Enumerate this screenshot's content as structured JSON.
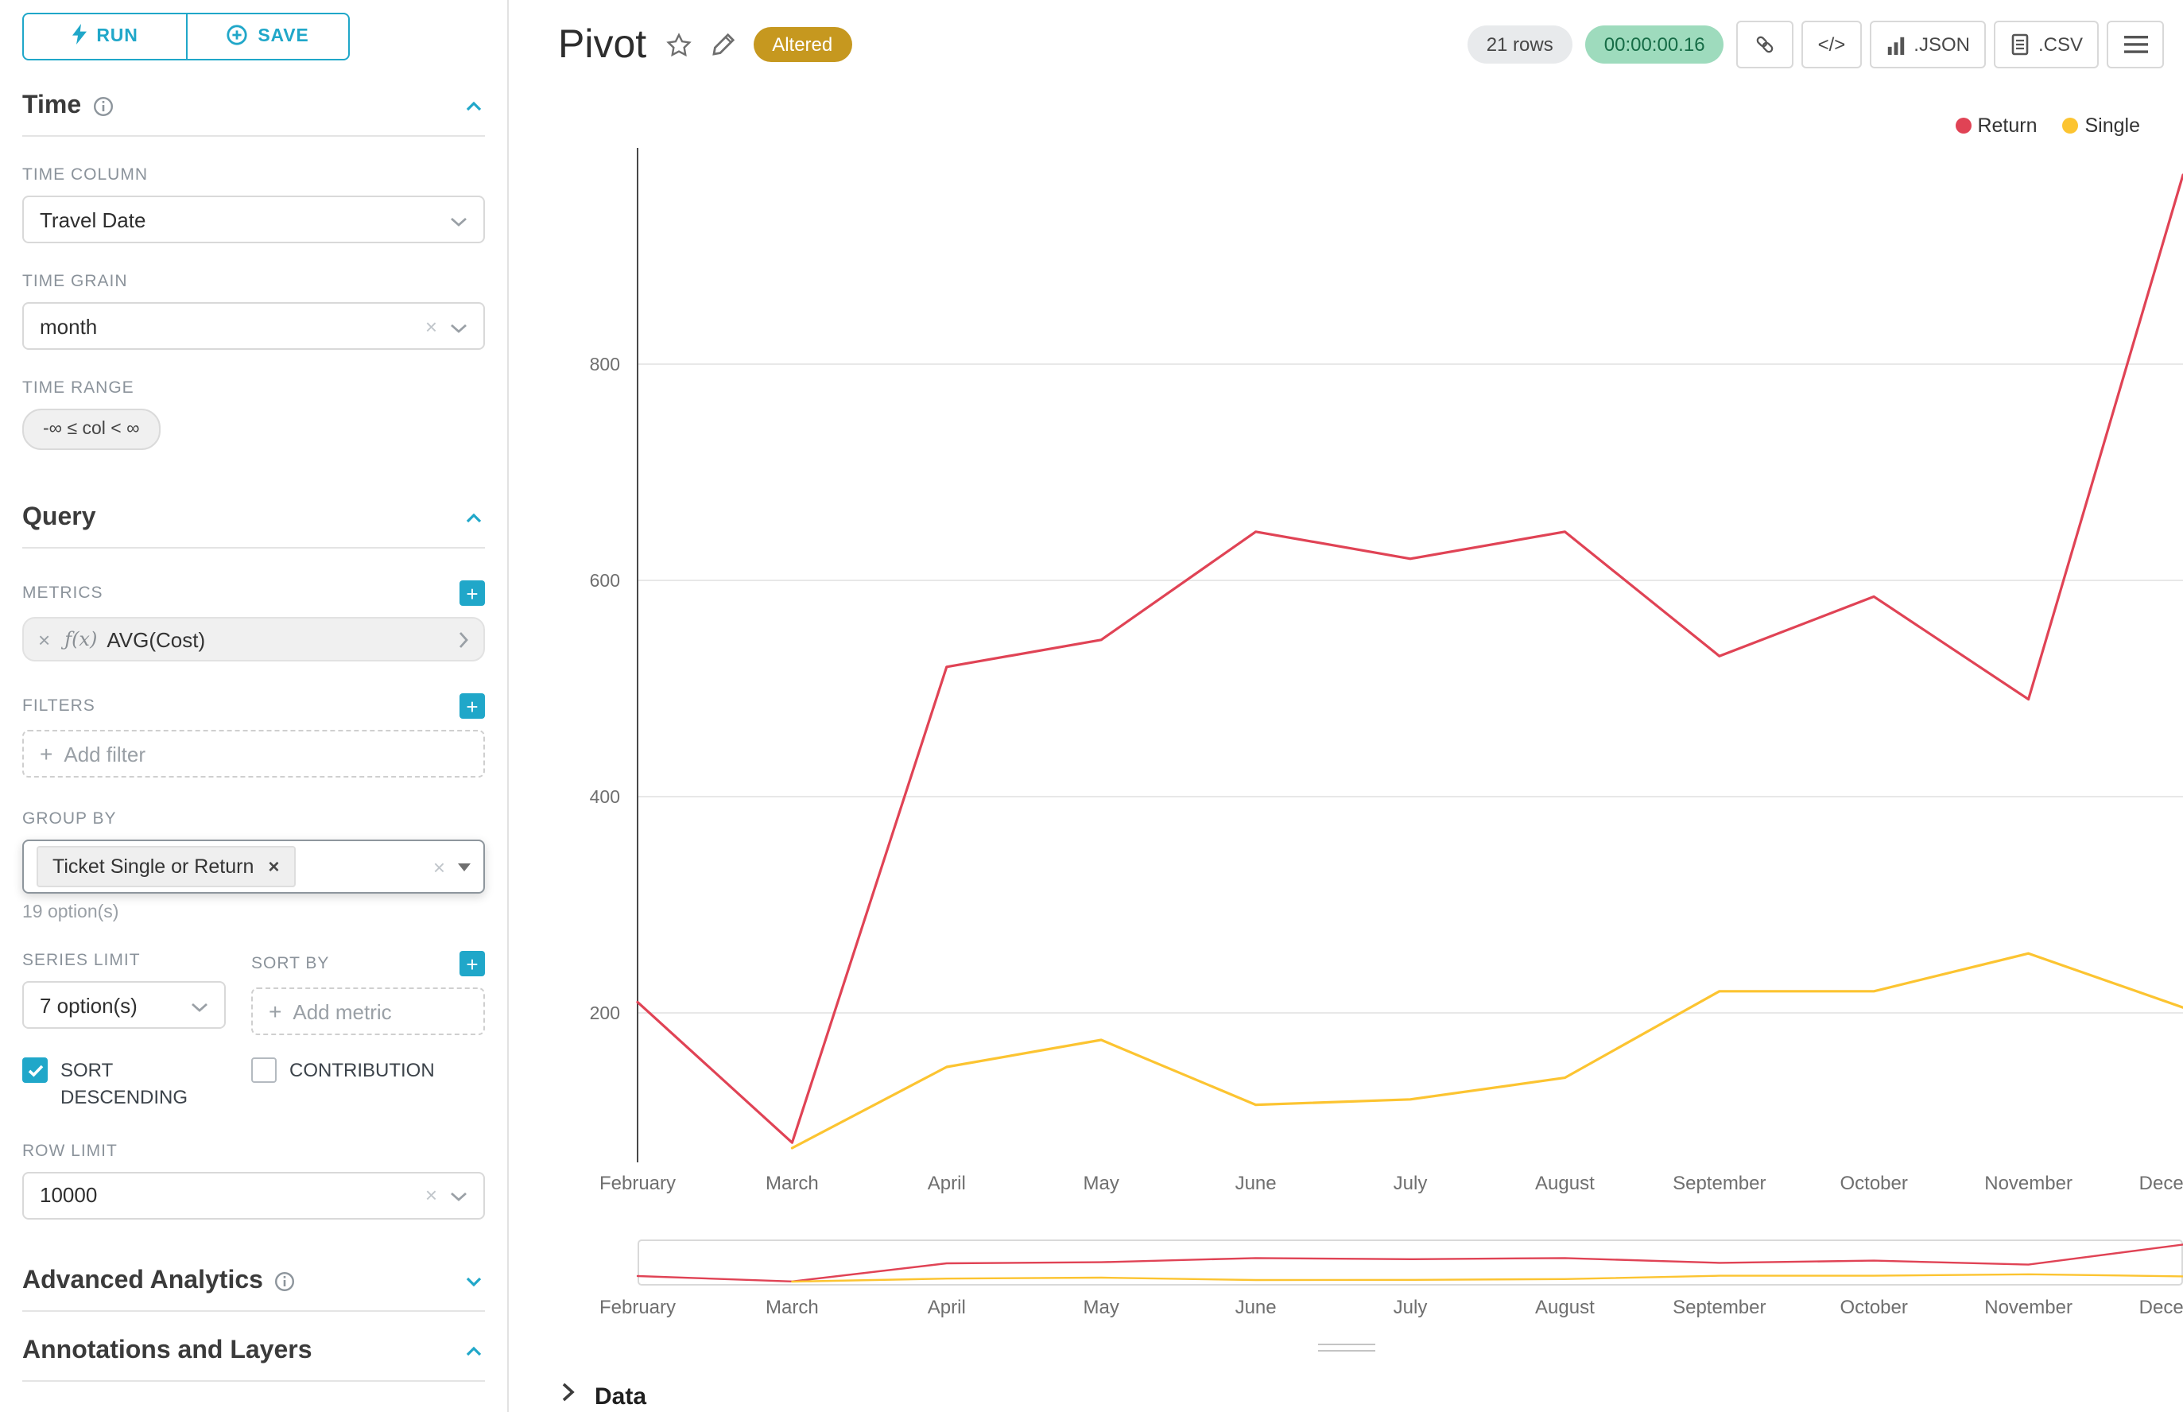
{
  "colors": {
    "accent": "#20a7c9",
    "altered_badge_bg": "#c6981f",
    "timer_badge_bg": "#9edbbd",
    "timer_badge_text": "#166c46",
    "return_series": "#e04355",
    "single_series": "#fcc431"
  },
  "sidebar": {
    "run_button": "RUN",
    "save_button": "SAVE",
    "time_section": {
      "title": "Time",
      "time_column_label": "TIME COLUMN",
      "time_column_value": "Travel Date",
      "time_grain_label": "TIME GRAIN",
      "time_grain_value": "month",
      "time_range_label": "TIME RANGE",
      "time_range_value": "-∞ ≤ col < ∞"
    },
    "query_section": {
      "title": "Query",
      "metrics_label": "METRICS",
      "metric_fx": "ƒ(x)",
      "metric_value": "AVG(Cost)",
      "filters_label": "FILTERS",
      "add_filter_placeholder": "Add filter",
      "group_by_label": "GROUP BY",
      "group_by_value": "Ticket Single or Return",
      "group_by_options_hint": "19 option(s)",
      "series_limit_label": "SERIES LIMIT",
      "series_limit_value": "7 option(s)",
      "sort_by_label": "SORT BY",
      "add_metric_placeholder": "Add metric",
      "sort_descending_label": "SORT DESCENDING",
      "contribution_label": "CONTRIBUTION",
      "row_limit_label": "ROW LIMIT",
      "row_limit_value": "10000"
    },
    "advanced_analytics_section": {
      "title": "Advanced Analytics"
    },
    "annotations_section": {
      "title": "Annotations and Layers"
    }
  },
  "header": {
    "title": "Pivot",
    "altered_badge": "Altered",
    "rows_badge": "21 rows",
    "timer_badge": "00:00:00.16",
    "code_button": "</>",
    "json_button": ".JSON",
    "csv_button": ".CSV"
  },
  "chart_data": {
    "type": "line",
    "title": "",
    "x": [
      "February",
      "March",
      "April",
      "May",
      "June",
      "July",
      "August",
      "September",
      "October",
      "November",
      "December"
    ],
    "series": [
      {
        "name": "Return",
        "color": "#e04355",
        "values": [
          210,
          80,
          520,
          545,
          645,
          620,
          645,
          530,
          585,
          490,
          975
        ]
      },
      {
        "name": "Single",
        "color": "#fcc431",
        "values": [
          null,
          75,
          150,
          175,
          115,
          120,
          140,
          220,
          220,
          255,
          205
        ]
      }
    ],
    "xlabel": "",
    "ylabel": "",
    "yticks": [
      200,
      400,
      600,
      800
    ],
    "ylim": [
      70,
      1000
    ],
    "grid": true,
    "legend_position": "top-right",
    "has_mini_preview": true
  },
  "data_panel": {
    "label": "Data"
  }
}
